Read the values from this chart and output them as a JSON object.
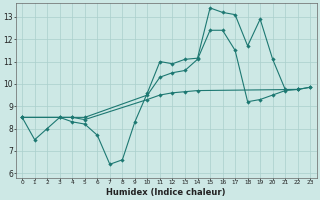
{
  "xlabel": "Humidex (Indice chaleur)",
  "background_color": "#cde8e5",
  "grid_color": "#aacfcc",
  "line_color": "#1d7872",
  "xlim": [
    -0.5,
    23.5
  ],
  "ylim": [
    5.8,
    13.6
  ],
  "xticks": [
    0,
    1,
    2,
    3,
    4,
    5,
    6,
    7,
    8,
    9,
    10,
    11,
    12,
    13,
    14,
    15,
    16,
    17,
    18,
    19,
    20,
    21,
    22,
    23
  ],
  "yticks": [
    6,
    7,
    8,
    9,
    10,
    11,
    12,
    13
  ],
  "series1_x": [
    0,
    1,
    2,
    3,
    4,
    5,
    6,
    7,
    8,
    9,
    10,
    11,
    12,
    13,
    14,
    15,
    16,
    17,
    18,
    19,
    20,
    21,
    22
  ],
  "series1_y": [
    8.5,
    7.5,
    8.0,
    8.5,
    8.3,
    8.2,
    7.7,
    6.4,
    6.6,
    8.3,
    9.6,
    11.0,
    10.9,
    11.1,
    11.15,
    13.4,
    13.2,
    13.1,
    11.7,
    12.9,
    11.1,
    9.75,
    9.75
  ],
  "series2_x": [
    0,
    4,
    5,
    10,
    11,
    12,
    13,
    14,
    15,
    16,
    17,
    18,
    19,
    20,
    21,
    22,
    23
  ],
  "series2_y": [
    8.5,
    8.5,
    8.5,
    9.5,
    10.3,
    10.5,
    10.6,
    11.1,
    12.4,
    12.4,
    11.5,
    9.2,
    9.3,
    9.5,
    9.7,
    9.75,
    9.85
  ],
  "series3_x": [
    0,
    3,
    4,
    5,
    10,
    11,
    12,
    13,
    14,
    22,
    23
  ],
  "series3_y": [
    8.5,
    8.5,
    8.5,
    8.4,
    9.3,
    9.5,
    9.6,
    9.65,
    9.7,
    9.75,
    9.85
  ]
}
